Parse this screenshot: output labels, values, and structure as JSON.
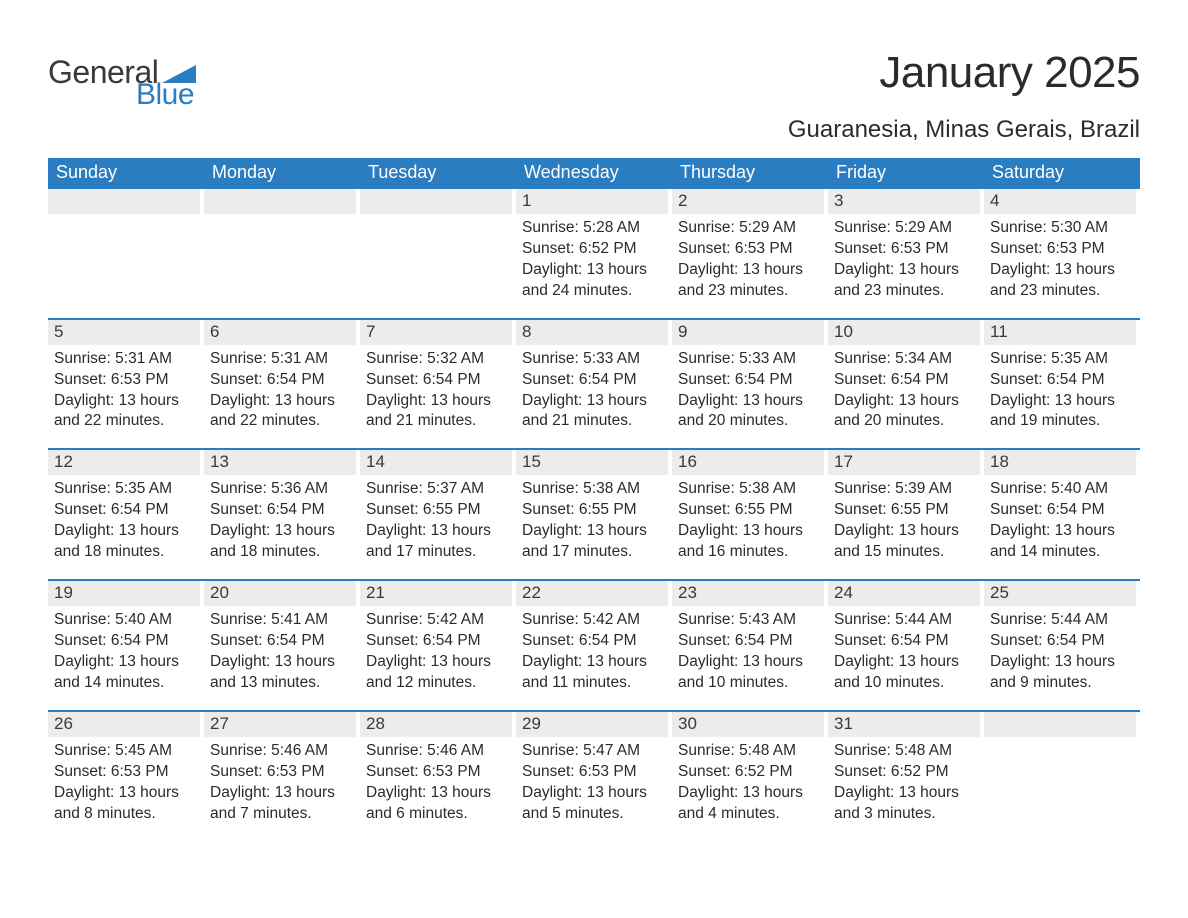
{
  "brand": {
    "text1": "General",
    "text2": "Blue",
    "wedge_color": "#2a7dc0"
  },
  "title": "January 2025",
  "location": "Guaranesia, Minas Gerais, Brazil",
  "theme": {
    "header_bg": "#2a7dc0",
    "header_fg": "#ffffff",
    "daynum_bg": "#ececec",
    "rule_color": "#2a7dc0",
    "text_color": "#2b2b2b",
    "page_bg": "#ffffff"
  },
  "weekdays": [
    "Sunday",
    "Monday",
    "Tuesday",
    "Wednesday",
    "Thursday",
    "Friday",
    "Saturday"
  ],
  "labels": {
    "sunrise": "Sunrise: ",
    "sunset": "Sunset: ",
    "daylight": "Daylight: "
  },
  "weeks": [
    [
      null,
      null,
      null,
      {
        "n": "1",
        "sunrise": "5:28 AM",
        "sunset": "6:52 PM",
        "daylight": "13 hours and 24 minutes."
      },
      {
        "n": "2",
        "sunrise": "5:29 AM",
        "sunset": "6:53 PM",
        "daylight": "13 hours and 23 minutes."
      },
      {
        "n": "3",
        "sunrise": "5:29 AM",
        "sunset": "6:53 PM",
        "daylight": "13 hours and 23 minutes."
      },
      {
        "n": "4",
        "sunrise": "5:30 AM",
        "sunset": "6:53 PM",
        "daylight": "13 hours and 23 minutes."
      }
    ],
    [
      {
        "n": "5",
        "sunrise": "5:31 AM",
        "sunset": "6:53 PM",
        "daylight": "13 hours and 22 minutes."
      },
      {
        "n": "6",
        "sunrise": "5:31 AM",
        "sunset": "6:54 PM",
        "daylight": "13 hours and 22 minutes."
      },
      {
        "n": "7",
        "sunrise": "5:32 AM",
        "sunset": "6:54 PM",
        "daylight": "13 hours and 21 minutes."
      },
      {
        "n": "8",
        "sunrise": "5:33 AM",
        "sunset": "6:54 PM",
        "daylight": "13 hours and 21 minutes."
      },
      {
        "n": "9",
        "sunrise": "5:33 AM",
        "sunset": "6:54 PM",
        "daylight": "13 hours and 20 minutes."
      },
      {
        "n": "10",
        "sunrise": "5:34 AM",
        "sunset": "6:54 PM",
        "daylight": "13 hours and 20 minutes."
      },
      {
        "n": "11",
        "sunrise": "5:35 AM",
        "sunset": "6:54 PM",
        "daylight": "13 hours and 19 minutes."
      }
    ],
    [
      {
        "n": "12",
        "sunrise": "5:35 AM",
        "sunset": "6:54 PM",
        "daylight": "13 hours and 18 minutes."
      },
      {
        "n": "13",
        "sunrise": "5:36 AM",
        "sunset": "6:54 PM",
        "daylight": "13 hours and 18 minutes."
      },
      {
        "n": "14",
        "sunrise": "5:37 AM",
        "sunset": "6:55 PM",
        "daylight": "13 hours and 17 minutes."
      },
      {
        "n": "15",
        "sunrise": "5:38 AM",
        "sunset": "6:55 PM",
        "daylight": "13 hours and 17 minutes."
      },
      {
        "n": "16",
        "sunrise": "5:38 AM",
        "sunset": "6:55 PM",
        "daylight": "13 hours and 16 minutes."
      },
      {
        "n": "17",
        "sunrise": "5:39 AM",
        "sunset": "6:55 PM",
        "daylight": "13 hours and 15 minutes."
      },
      {
        "n": "18",
        "sunrise": "5:40 AM",
        "sunset": "6:54 PM",
        "daylight": "13 hours and 14 minutes."
      }
    ],
    [
      {
        "n": "19",
        "sunrise": "5:40 AM",
        "sunset": "6:54 PM",
        "daylight": "13 hours and 14 minutes."
      },
      {
        "n": "20",
        "sunrise": "5:41 AM",
        "sunset": "6:54 PM",
        "daylight": "13 hours and 13 minutes."
      },
      {
        "n": "21",
        "sunrise": "5:42 AM",
        "sunset": "6:54 PM",
        "daylight": "13 hours and 12 minutes."
      },
      {
        "n": "22",
        "sunrise": "5:42 AM",
        "sunset": "6:54 PM",
        "daylight": "13 hours and 11 minutes."
      },
      {
        "n": "23",
        "sunrise": "5:43 AM",
        "sunset": "6:54 PM",
        "daylight": "13 hours and 10 minutes."
      },
      {
        "n": "24",
        "sunrise": "5:44 AM",
        "sunset": "6:54 PM",
        "daylight": "13 hours and 10 minutes."
      },
      {
        "n": "25",
        "sunrise": "5:44 AM",
        "sunset": "6:54 PM",
        "daylight": "13 hours and 9 minutes."
      }
    ],
    [
      {
        "n": "26",
        "sunrise": "5:45 AM",
        "sunset": "6:53 PM",
        "daylight": "13 hours and 8 minutes."
      },
      {
        "n": "27",
        "sunrise": "5:46 AM",
        "sunset": "6:53 PM",
        "daylight": "13 hours and 7 minutes."
      },
      {
        "n": "28",
        "sunrise": "5:46 AM",
        "sunset": "6:53 PM",
        "daylight": "13 hours and 6 minutes."
      },
      {
        "n": "29",
        "sunrise": "5:47 AM",
        "sunset": "6:53 PM",
        "daylight": "13 hours and 5 minutes."
      },
      {
        "n": "30",
        "sunrise": "5:48 AM",
        "sunset": "6:52 PM",
        "daylight": "13 hours and 4 minutes."
      },
      {
        "n": "31",
        "sunrise": "5:48 AM",
        "sunset": "6:52 PM",
        "daylight": "13 hours and 3 minutes."
      },
      null
    ]
  ]
}
